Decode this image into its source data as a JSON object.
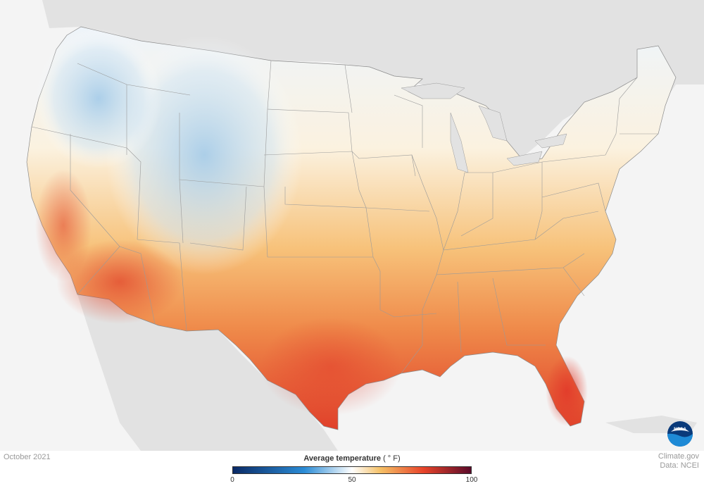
{
  "map": {
    "date": "October 2021",
    "credit_line1": "Climate.gov",
    "credit_line2": "Data: NCEI",
    "legend": {
      "title": "Average temperature",
      "unit": "( ° F)",
      "ticks": [
        "0",
        "50",
        "100"
      ],
      "tick_values": [
        0,
        50,
        100
      ],
      "range": [
        0,
        100
      ]
    },
    "colors": {
      "cold": "#0a2a66",
      "cool": "#2b8cd6",
      "neutral": "#ffffff",
      "warm": "#f5c066",
      "hot": "#e8442a",
      "extreme": "#5a0a2a",
      "land_outside": "#dcdcdc",
      "ocean": "#f4f4f4"
    },
    "logo": "noaa-logo"
  }
}
